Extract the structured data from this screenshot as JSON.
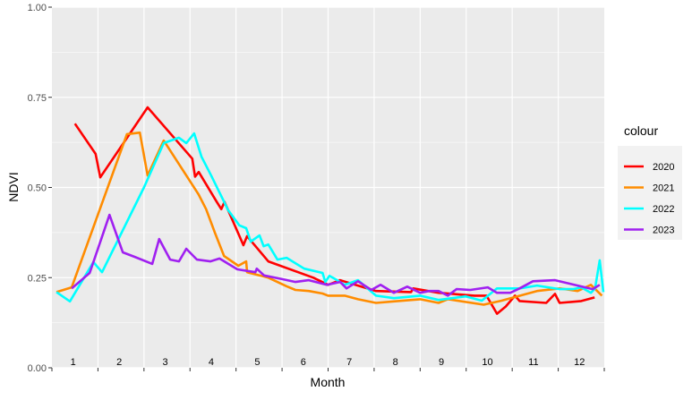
{
  "chart_data": {
    "type": "line",
    "title": "",
    "xlabel": "Month",
    "ylabel": "NDVI",
    "xlim": [
      0,
      12
    ],
    "ylim": [
      0,
      1
    ],
    "x_tick_labels": [
      "1",
      "2",
      "3",
      "4",
      "5",
      "6",
      "7",
      "8",
      "9",
      "10",
      "11",
      "12"
    ],
    "y_ticks": [
      0,
      0.25,
      0.5,
      0.75,
      1
    ],
    "y_tick_labels": [
      "0.00",
      "0.25",
      "0.50",
      "0.75",
      "1.00"
    ],
    "grid": true,
    "legend": {
      "title": "colour",
      "placement": "right"
    },
    "series": [
      {
        "name": "2020",
        "color": "#ff0000",
        "points": [
          [
            0.5,
            0.677
          ],
          [
            0.95,
            0.593
          ],
          [
            1.05,
            0.528
          ],
          [
            2.08,
            0.722
          ],
          [
            3.05,
            0.58
          ],
          [
            3.11,
            0.53
          ],
          [
            3.19,
            0.543
          ],
          [
            3.58,
            0.46
          ],
          [
            3.68,
            0.44
          ],
          [
            3.75,
            0.46
          ],
          [
            4.16,
            0.34
          ],
          [
            4.24,
            0.365
          ],
          [
            4.7,
            0.295
          ],
          [
            5.68,
            0.25
          ],
          [
            6.0,
            0.23
          ],
          [
            6.26,
            0.243
          ],
          [
            7.04,
            0.213
          ],
          [
            7.8,
            0.21
          ],
          [
            7.85,
            0.22
          ],
          [
            8.4,
            0.208
          ],
          [
            9.18,
            0.2
          ],
          [
            9.44,
            0.2
          ],
          [
            9.67,
            0.15
          ],
          [
            9.86,
            0.17
          ],
          [
            10.06,
            0.2
          ],
          [
            10.16,
            0.185
          ],
          [
            10.74,
            0.18
          ],
          [
            10.93,
            0.205
          ],
          [
            11.03,
            0.18
          ],
          [
            11.5,
            0.185
          ],
          [
            11.79,
            0.195
          ]
        ]
      },
      {
        "name": "2021",
        "color": "#ff8c00",
        "points": [
          [
            0.1,
            0.21
          ],
          [
            0.43,
            0.223
          ],
          [
            1.63,
            0.648
          ],
          [
            1.91,
            0.652
          ],
          [
            2.08,
            0.533
          ],
          [
            2.43,
            0.63
          ],
          [
            3.19,
            0.48
          ],
          [
            3.35,
            0.44
          ],
          [
            3.54,
            0.375
          ],
          [
            3.74,
            0.31
          ],
          [
            4.05,
            0.283
          ],
          [
            4.22,
            0.295
          ],
          [
            4.24,
            0.265
          ],
          [
            4.7,
            0.25
          ],
          [
            5.1,
            0.226
          ],
          [
            5.29,
            0.216
          ],
          [
            5.58,
            0.213
          ],
          [
            5.88,
            0.206
          ],
          [
            6.0,
            0.2
          ],
          [
            6.36,
            0.2
          ],
          [
            6.65,
            0.19
          ],
          [
            7.04,
            0.18
          ],
          [
            7.43,
            0.184
          ],
          [
            8.0,
            0.19
          ],
          [
            8.4,
            0.18
          ],
          [
            8.6,
            0.19
          ],
          [
            9.38,
            0.175
          ],
          [
            9.77,
            0.186
          ],
          [
            10.54,
            0.213
          ],
          [
            11.03,
            0.22
          ],
          [
            11.42,
            0.213
          ],
          [
            11.71,
            0.23
          ],
          [
            11.95,
            0.2
          ]
        ]
      },
      {
        "name": "2022",
        "color": "#00ffff",
        "points": [
          [
            0.1,
            0.21
          ],
          [
            0.39,
            0.184
          ],
          [
            0.9,
            0.293
          ],
          [
            1.09,
            0.265
          ],
          [
            2.0,
            0.5
          ],
          [
            2.43,
            0.623
          ],
          [
            2.76,
            0.638
          ],
          [
            2.92,
            0.623
          ],
          [
            3.09,
            0.65
          ],
          [
            3.25,
            0.585
          ],
          [
            3.46,
            0.533
          ],
          [
            3.83,
            0.437
          ],
          [
            4.07,
            0.395
          ],
          [
            4.22,
            0.387
          ],
          [
            4.32,
            0.35
          ],
          [
            4.51,
            0.367
          ],
          [
            4.6,
            0.337
          ],
          [
            4.7,
            0.342
          ],
          [
            4.9,
            0.3
          ],
          [
            5.1,
            0.305
          ],
          [
            5.48,
            0.275
          ],
          [
            5.88,
            0.263
          ],
          [
            5.94,
            0.238
          ],
          [
            6.03,
            0.255
          ],
          [
            6.17,
            0.245
          ],
          [
            6.36,
            0.23
          ],
          [
            6.65,
            0.243
          ],
          [
            7.04,
            0.2
          ],
          [
            7.43,
            0.193
          ],
          [
            8.0,
            0.2
          ],
          [
            8.4,
            0.188
          ],
          [
            8.7,
            0.193
          ],
          [
            8.99,
            0.198
          ],
          [
            9.34,
            0.186
          ],
          [
            9.67,
            0.22
          ],
          [
            10.16,
            0.22
          ],
          [
            10.54,
            0.228
          ],
          [
            11.03,
            0.218
          ],
          [
            11.32,
            0.218
          ],
          [
            11.5,
            0.223
          ],
          [
            11.71,
            0.208
          ],
          [
            11.8,
            0.22
          ],
          [
            11.9,
            0.298
          ],
          [
            11.98,
            0.21
          ]
        ]
      },
      {
        "name": "2023",
        "color": "#a020f0",
        "points": [
          [
            0.43,
            0.22
          ],
          [
            0.82,
            0.263
          ],
          [
            1.25,
            0.424
          ],
          [
            1.54,
            0.32
          ],
          [
            1.79,
            0.308
          ],
          [
            2.18,
            0.288
          ],
          [
            2.33,
            0.357
          ],
          [
            2.57,
            0.3
          ],
          [
            2.76,
            0.295
          ],
          [
            2.92,
            0.33
          ],
          [
            3.15,
            0.3
          ],
          [
            3.44,
            0.295
          ],
          [
            3.64,
            0.303
          ],
          [
            4.03,
            0.273
          ],
          [
            4.42,
            0.265
          ],
          [
            4.45,
            0.275
          ],
          [
            4.61,
            0.256
          ],
          [
            5.0,
            0.246
          ],
          [
            5.29,
            0.238
          ],
          [
            5.58,
            0.243
          ],
          [
            5.97,
            0.23
          ],
          [
            6.26,
            0.238
          ],
          [
            6.4,
            0.22
          ],
          [
            6.65,
            0.24
          ],
          [
            6.94,
            0.216
          ],
          [
            7.14,
            0.23
          ],
          [
            7.43,
            0.208
          ],
          [
            7.72,
            0.225
          ],
          [
            8.0,
            0.208
          ],
          [
            8.2,
            0.213
          ],
          [
            8.4,
            0.213
          ],
          [
            8.6,
            0.2
          ],
          [
            8.79,
            0.218
          ],
          [
            9.09,
            0.216
          ],
          [
            9.47,
            0.223
          ],
          [
            9.67,
            0.208
          ],
          [
            9.96,
            0.208
          ],
          [
            10.16,
            0.22
          ],
          [
            10.45,
            0.24
          ],
          [
            10.93,
            0.243
          ],
          [
            11.42,
            0.228
          ],
          [
            11.75,
            0.218
          ],
          [
            11.9,
            0.23
          ]
        ]
      }
    ]
  }
}
